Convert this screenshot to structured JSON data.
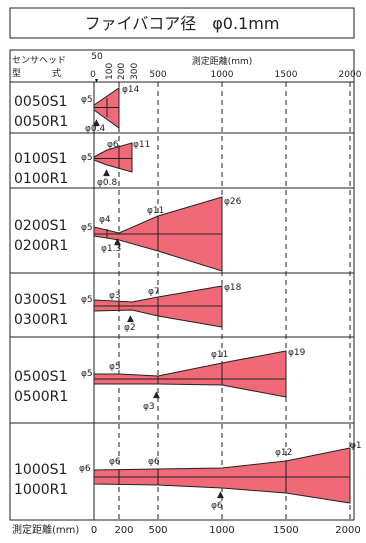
{
  "title": "ファイバコア径　φ0.1mm",
  "header": {
    "col1_line1": "センサヘッド",
    "col1_line2_a": "型",
    "col1_line2_b": "式",
    "axis_title": "測定距離(mm)",
    "top_ticks": [
      "50",
      "0",
      "100",
      "200",
      "300",
      "500",
      "1000",
      "1500",
      "2000"
    ]
  },
  "footer": {
    "label": "測定距離(mm)",
    "ticks": [
      "0",
      "200",
      "500",
      "1000",
      "1500",
      "2000"
    ]
  },
  "colors": {
    "beam": "#ef6a76",
    "line": "#222222",
    "marker": "#111111"
  },
  "rows": [
    {
      "m1": "0050S1",
      "m2": "0050R1",
      "left": "φ5",
      "top": "φ14",
      "waist": "φ0.4",
      "marker": "▲"
    },
    {
      "m1": "0100S1",
      "m2": "0100R1",
      "left": "φ5",
      "top_a": "φ6",
      "top_b": "φ11",
      "waist": "φ0.8",
      "marker": "▲"
    },
    {
      "m1": "0200S1",
      "m2": "0200R1",
      "left": "φ5",
      "top_a": "φ4",
      "top_b": "φ11",
      "top_c": "φ26",
      "waist": "φ1.3",
      "marker": "▲"
    },
    {
      "m1": "0300S1",
      "m2": "0300R1",
      "left": "φ5",
      "top_a": "φ3",
      "top_b": "φ7",
      "top_c": "φ18",
      "waist": "φ2",
      "marker": "▲"
    },
    {
      "m1": "0500S1",
      "m2": "0500R1",
      "left": "φ5",
      "top_a": "φ5",
      "top_b": "φ11",
      "top_c": "φ19",
      "waist": "φ3",
      "marker": "▲"
    },
    {
      "m1": "1000S1",
      "m2": "1000R1",
      "left": "φ6",
      "top_a": "φ6",
      "top_b": "φ6",
      "top_c": "φ12",
      "top_d": "φ1",
      "waist": "φ6",
      "marker": "▲"
    }
  ]
}
